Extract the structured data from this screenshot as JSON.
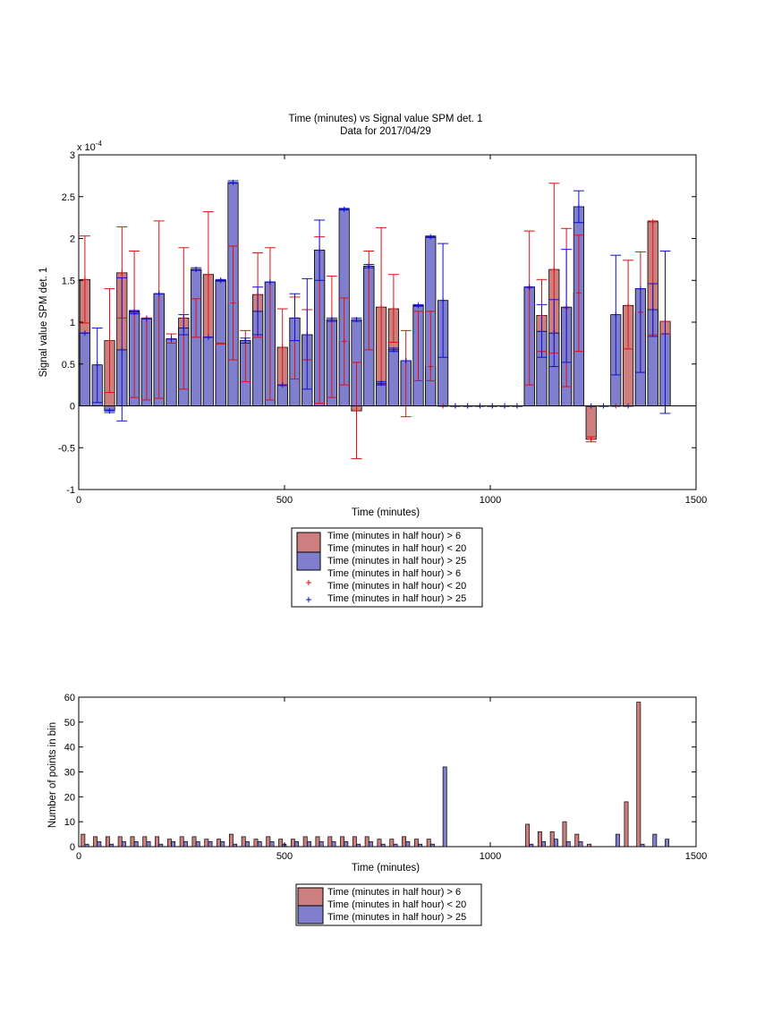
{
  "chart_data": [
    {
      "type": "bar",
      "title": "Time (minutes) vs Signal value SPM det. 1",
      "subtitle": "Data for 2017/04/29",
      "xlabel": "Time (minutes)",
      "ylabel": "Signal value SPM det. 1",
      "y_exponent_label": "x 10",
      "y_exponent": "-4",
      "xlim": [
        0,
        1500
      ],
      "ylim": [
        -1,
        3
      ],
      "x_ticks": [
        0,
        500,
        1000,
        1500
      ],
      "y_ticks": [
        -1,
        -0.5,
        0,
        0.5,
        1,
        1.5,
        2,
        2.5,
        3
      ],
      "grid": false,
      "legend_position": "below",
      "legend": [
        "Time (minutes in half hour) > 6",
        "Time (minutes in half hour) < 20",
        "Time (minutes in half hour) > 25",
        "Time (minutes in half hour) > 6",
        "Time (minutes in half hour) < 20",
        "Time (minutes in half hour) > 25"
      ],
      "series": [
        {
          "name": "Time (minutes in half hour) > 6 / Time (minutes in half hour) < 20",
          "color": "#cd7f7f",
          "errorbar_color": "#dd1111",
          "x": [
            15,
            75,
            105,
            135,
            165,
            195,
            225,
            255,
            285,
            315,
            345,
            375,
            405,
            435,
            465,
            495,
            525,
            555,
            585,
            615,
            645,
            675,
            705,
            735,
            765,
            795,
            825,
            855,
            885,
            915,
            945,
            975,
            1005,
            1035,
            1065,
            1095,
            1125,
            1155,
            1185,
            1215,
            1245,
            1275,
            1305,
            1335,
            1365,
            1395,
            1425
          ],
          "values": [
            1.51,
            0.78,
            1.59,
            1.13,
            1.05,
            1.34,
            0.8,
            1.05,
            1.63,
            1.57,
            1.5,
            1.23,
            0.78,
            1.33,
            1.48,
            0.7,
            1.05,
            0.85,
            1.86,
            1.03,
            0.77,
            -0.06,
            1.67,
            1.18,
            1.16,
            0.54,
            1.2,
            0.47,
            0,
            0,
            0,
            0,
            0,
            0,
            0,
            1.41,
            1.08,
            1.63,
            1.17,
            1.35,
            -0.4,
            0,
            0,
            1.2,
            1.12,
            2.2,
            1.01
          ],
          "err_low": [
            0.99,
            0.16,
            1.05,
            0.1,
            0.07,
            0.09,
            0.75,
            0.2,
            0.82,
            0.82,
            0.75,
            0.55,
            0.29,
            0.82,
            0.07,
            0.24,
            0.32,
            0.55,
            0.03,
            0.1,
            0.25,
            -0.63,
            0.67,
            0.26,
            0.76,
            -0.13,
            0.3,
            0.3,
            0,
            0,
            0,
            0,
            0,
            0,
            0,
            0.25,
            0.65,
            0.63,
            0.23,
            0.65,
            -0.43,
            0,
            0,
            0.68,
            0.4,
            0.85,
            0.86
          ],
          "err_high": [
            2.03,
            1.4,
            2.14,
            1.85,
            1.05,
            2.21,
            0.86,
            1.89,
            1.28,
            2.32,
            0.74,
            1.91,
            0.9,
            1.83,
            1.89,
            1.16,
            1.3,
            1.15,
            2.02,
            1.55,
            1.29,
            0.52,
            1.85,
            2.13,
            1.57,
            0.9,
            1.13,
            1.13,
            0,
            0,
            0,
            0,
            0,
            0,
            0,
            2.09,
            1.51,
            2.66,
            2.12,
            2.04,
            -0.37,
            0,
            0,
            1.74,
            1.84,
            2.21,
            1.01
          ]
        },
        {
          "name": "Time (minutes in half hour) > 25",
          "color": "#7f7fcd",
          "errorbar_color": "#1111cc",
          "x": [
            15,
            45,
            75,
            105,
            135,
            165,
            195,
            225,
            255,
            285,
            315,
            345,
            375,
            405,
            435,
            465,
            495,
            525,
            555,
            585,
            615,
            645,
            675,
            705,
            735,
            765,
            795,
            825,
            855,
            885,
            915,
            945,
            975,
            1005,
            1035,
            1065,
            1095,
            1125,
            1155,
            1185,
            1215,
            1245,
            1275,
            1305,
            1335,
            1365,
            1395,
            1425
          ],
          "values": [
            0.87,
            0.49,
            -0.06,
            0.67,
            1.12,
            1.04,
            1.34,
            0.8,
            0.93,
            1.63,
            0.82,
            1.5,
            2.67,
            0.78,
            1.13,
            1.48,
            0.25,
            1.05,
            0.85,
            1.86,
            1.03,
            2.35,
            1.03,
            1.67,
            0.27,
            0.67,
            0.54,
            1.2,
            2.02,
            1.26,
            0,
            0,
            0,
            0,
            0,
            0,
            1.42,
            0.89,
            0.87,
            1.18,
            2.38,
            0,
            0,
            1.09,
            0,
            1.4,
            1.15,
            0.86
          ],
          "err_low": [
            0.87,
            0.04,
            -0.08,
            -0.18,
            1.1,
            1.04,
            1.34,
            0.8,
            0.85,
            1.62,
            0.82,
            1.49,
            2.66,
            0.75,
            0.85,
            1.48,
            0.25,
            0.78,
            0.2,
            1.5,
            1.01,
            2.34,
            1.01,
            1.65,
            0.25,
            0.65,
            0.54,
            1.19,
            2.01,
            0.58,
            0,
            0,
            0,
            0,
            0,
            0,
            1.42,
            0.58,
            0.47,
            0.52,
            2.19,
            0,
            0,
            0.37,
            0,
            0.4,
            0.83,
            -0.09
          ],
          "err_high": [
            0.87,
            0.93,
            -0.05,
            1.53,
            1.14,
            1.04,
            1.34,
            0.8,
            1.09,
            1.65,
            0.82,
            1.51,
            2.69,
            0.81,
            1.42,
            1.48,
            0.25,
            1.34,
            1.52,
            2.22,
            1.05,
            2.36,
            1.05,
            1.69,
            0.29,
            0.69,
            0.54,
            1.21,
            2.03,
            1.94,
            0,
            0,
            0,
            0,
            0,
            0,
            1.42,
            1.21,
            1.27,
            1.87,
            2.57,
            0,
            0,
            1.8,
            0,
            1.4,
            1.46,
            1.85
          ]
        }
      ]
    },
    {
      "type": "bar",
      "xlabel": "Time (minutes)",
      "ylabel": "Number of points in bin",
      "xlim": [
        0,
        1500
      ],
      "ylim": [
        0,
        60
      ],
      "x_ticks": [
        0,
        500,
        1000,
        1500
      ],
      "y_ticks": [
        0,
        10,
        20,
        30,
        40,
        50,
        60
      ],
      "grid": false,
      "legend_position": "below",
      "legend": [
        "Time (minutes in half hour) > 6",
        "Time (minutes in half hour) < 20",
        "Time (minutes in half hour) > 25"
      ],
      "series": [
        {
          "name": "Time (minutes in half hour) > 6 / Time (minutes in half hour) < 20",
          "color": "#cd7f7f",
          "x": [
            15,
            45,
            75,
            105,
            135,
            165,
            195,
            225,
            255,
            285,
            315,
            345,
            375,
            405,
            435,
            465,
            495,
            525,
            555,
            585,
            615,
            645,
            675,
            705,
            735,
            765,
            795,
            825,
            855,
            1095,
            1125,
            1155,
            1185,
            1215,
            1245,
            1335,
            1365
          ],
          "values": [
            5,
            4,
            4,
            4,
            4,
            4,
            4,
            3,
            4,
            4,
            3,
            3,
            5,
            4,
            3,
            4,
            3,
            3,
            4,
            4,
            4,
            4,
            4,
            4,
            3,
            3,
            4,
            3,
            3,
            9,
            6,
            6,
            10,
            5,
            1,
            18,
            58
          ]
        },
        {
          "name": "Time (minutes in half hour) > 25",
          "color": "#7f7fcd",
          "x": [
            15,
            45,
            75,
            105,
            135,
            165,
            195,
            225,
            255,
            285,
            315,
            345,
            375,
            405,
            435,
            465,
            495,
            525,
            555,
            585,
            615,
            645,
            675,
            705,
            735,
            765,
            795,
            825,
            855,
            885,
            1095,
            1125,
            1155,
            1185,
            1215,
            1305,
            1365,
            1395,
            1425
          ],
          "values": [
            1,
            2,
            1,
            2,
            2,
            2,
            1,
            2,
            2,
            2,
            2,
            2,
            1,
            2,
            2,
            2,
            1,
            2,
            2,
            2,
            2,
            2,
            1,
            2,
            1,
            1,
            2,
            1,
            1,
            32,
            1,
            2,
            3,
            2,
            2,
            5,
            1,
            5,
            3
          ]
        }
      ]
    }
  ]
}
